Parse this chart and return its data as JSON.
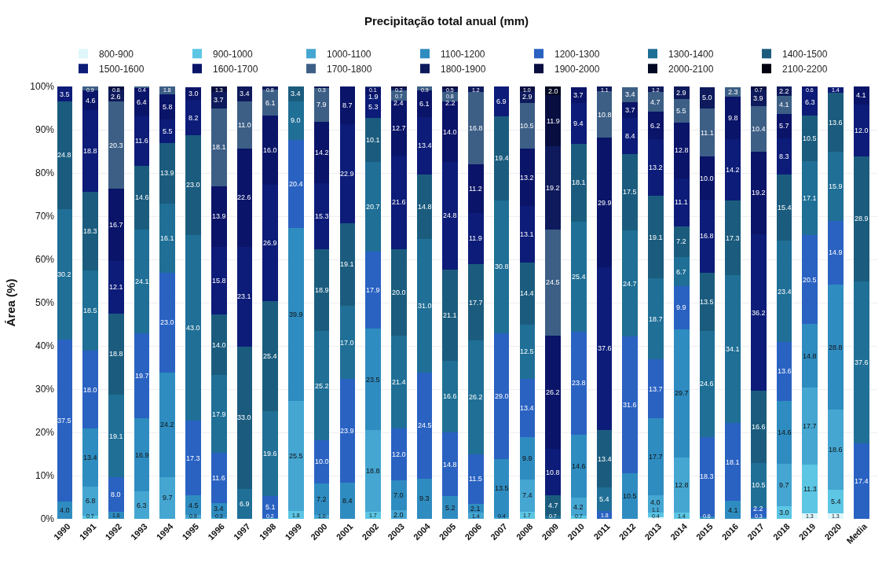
{
  "chart_data": {
    "type": "bar",
    "stacked": true,
    "title": "Precipitação total anual (mm)",
    "ylabel": "Área (%)",
    "categories": [
      "1990",
      "1991",
      "1992",
      "1993",
      "1994",
      "1995",
      "1996",
      "1997",
      "1998",
      "1999",
      "2000",
      "2001",
      "2002",
      "2003",
      "2004",
      "2005",
      "2006",
      "2007",
      "2008",
      "2009",
      "2010",
      "2011",
      "2012",
      "2013",
      "2014",
      "2015",
      "2016",
      "2017",
      "2018",
      "2019",
      "2020",
      "Media"
    ],
    "ylim": [
      0,
      100
    ],
    "yticks": [
      {
        "value": 0,
        "label": "0%"
      },
      {
        "value": 10,
        "label": "10%"
      },
      {
        "value": 20,
        "label": "20%"
      },
      {
        "value": 30,
        "label": "30%"
      },
      {
        "value": 40,
        "label": "40%"
      },
      {
        "value": 50,
        "label": "50%"
      },
      {
        "value": 60,
        "label": "60%"
      },
      {
        "value": 70,
        "label": "70%"
      },
      {
        "value": 80,
        "label": "80%"
      },
      {
        "value": 90,
        "label": "90%"
      },
      {
        "value": 100,
        "label": "100%"
      }
    ],
    "grid": "y",
    "legend": "top",
    "data_labels": true,
    "series": [
      {
        "name": "800-900",
        "color": "#dff6fb",
        "values": [
          null,
          null,
          null,
          null,
          null,
          null,
          null,
          null,
          null,
          null,
          null,
          null,
          null,
          null,
          null,
          null,
          null,
          null,
          null,
          null,
          null,
          null,
          null,
          0.4,
          null,
          null,
          null,
          null,
          null,
          1.3,
          1.3,
          null
        ],
        "value_labels": [
          null,
          null,
          null,
          null,
          null,
          null,
          null,
          null,
          null,
          null,
          null,
          null,
          null,
          null,
          null,
          null,
          null,
          null,
          null,
          null,
          null,
          null,
          null,
          "0.4",
          null,
          null,
          null,
          null,
          null,
          "1.3",
          "1.3",
          null
        ]
      },
      {
        "name": "900-1000",
        "color": "#5cc6e4",
        "values": [
          null,
          0.7,
          null,
          null,
          null,
          null,
          null,
          null,
          null,
          1.8,
          null,
          null,
          1.7,
          null,
          null,
          null,
          null,
          null,
          1.7,
          null,
          0.7,
          null,
          null,
          1.1,
          1.4,
          null,
          null,
          null,
          3.0,
          11.3,
          5.4,
          null
        ],
        "value_labels": [
          null,
          "0.7",
          null,
          null,
          null,
          null,
          null,
          null,
          null,
          "1.8",
          null,
          null,
          "1.7",
          null,
          null,
          null,
          null,
          null,
          "1.7",
          null,
          "0.7",
          null,
          null,
          "1.1",
          "1.4",
          null,
          null,
          null,
          "3.0",
          "11.3",
          "5.4",
          null
        ]
      },
      {
        "name": "1000-1100",
        "color": "#45a6d2",
        "values": [
          null,
          6.8,
          null,
          6.3,
          9.7,
          0.9,
          0.3,
          null,
          null,
          25.5,
          1.0,
          null,
          18.8,
          2.0,
          null,
          null,
          1.4,
          0.4,
          7.4,
          null,
          4.2,
          null,
          null,
          4.0,
          12.8,
          null,
          null,
          null,
          9.7,
          17.7,
          18.6,
          null
        ],
        "value_labels": [
          null,
          "6.8",
          null,
          "6.3",
          "9.7",
          "0.9",
          "0.3",
          null,
          null,
          "25.5",
          "1.0",
          null,
          "18.8",
          "2.0",
          null,
          null,
          "1.4",
          "0.4",
          "7.4",
          null,
          "4.2",
          null,
          null,
          "4.0",
          "12.8",
          null,
          null,
          null,
          "9.7",
          "17.7",
          "18.6",
          null
        ]
      },
      {
        "name": "1100-1200",
        "color": "#2f8cc0",
        "values": [
          4.0,
          13.4,
          1.6,
          16.9,
          24.2,
          4.5,
          3.4,
          null,
          0.2,
          39.9,
          7.2,
          8.4,
          23.5,
          7.0,
          9.3,
          5.2,
          2.1,
          13.5,
          9.9,
          null,
          14.6,
          null,
          10.5,
          17.7,
          29.7,
          0.6,
          4.1,
          0.3,
          14.6,
          14.8,
          28.8,
          null
        ],
        "value_labels": [
          "4.0",
          "13.4",
          "1.6",
          "16.9",
          "24.2",
          "4.5",
          "3.4",
          null,
          "0.2",
          "39.9",
          "7.2",
          "8.4",
          "23.5",
          "7.0",
          "9.3",
          "5.2",
          "2.1",
          "13.5",
          "9.9",
          null,
          "14.6",
          null,
          "10.5",
          "17.7",
          "29.7",
          "0.6",
          "4.1",
          "0.3",
          "14.6",
          "14.8",
          "28.8",
          null
        ]
      },
      {
        "name": "1200-1300",
        "color": "#2a62c2",
        "values": [
          37.5,
          18.0,
          8.0,
          19.7,
          23.0,
          17.3,
          11.6,
          null,
          5.1,
          20.4,
          10.0,
          23.9,
          17.9,
          12.0,
          24.5,
          14.8,
          11.5,
          29.0,
          13.4,
          null,
          23.8,
          1.8,
          31.6,
          13.7,
          9.9,
          18.3,
          18.1,
          2.2,
          13.6,
          20.5,
          14.9,
          17.4
        ],
        "value_labels": [
          "37.5",
          "18.0",
          "8.0",
          "19.7",
          "23.0",
          "17.3",
          "11.6",
          null,
          "5.1",
          "20.4",
          "10.0",
          "23.9",
          "17.9",
          "12.0",
          "24.5",
          "14.8",
          "11.5",
          "29.0",
          "13.4",
          null,
          "23.8",
          "1.8",
          "31.6",
          "13.7",
          "9.9",
          "18.3",
          "18.1",
          "2.2",
          "13.6",
          "20.5",
          "14.9",
          "17.4"
        ]
      },
      {
        "name": "1300-1400",
        "color": "#1f6f96",
        "values": [
          30.2,
          18.5,
          19.1,
          24.1,
          16.1,
          43.0,
          17.9,
          6.9,
          19.6,
          9.0,
          25.2,
          17.0,
          20.7,
          21.4,
          31.0,
          16.6,
          26.2,
          30.8,
          12.5,
          0.7,
          25.4,
          5.4,
          24.7,
          18.7,
          6.7,
          24.6,
          34.1,
          10.5,
          23.4,
          17.1,
          15.9,
          37.6
        ],
        "value_labels": [
          "30.2",
          "18.5",
          "19.1",
          "24.1",
          "16.1",
          "43.0",
          "17.9",
          "6.9",
          "19.6",
          "9.0",
          "25.2",
          "17.0",
          "20.7",
          "21.4",
          "31.0",
          "16.6",
          "26.2",
          "30.8",
          "12.5",
          "0.7",
          "25.4",
          "5.4",
          "24.7",
          "18.7",
          "6.7",
          "24.6",
          "34.1",
          "10.5",
          "23.4",
          "17.1",
          "15.9",
          "37.6"
        ]
      },
      {
        "name": "1400-1500",
        "color": "#1b5c7e",
        "values": [
          24.8,
          18.3,
          18.8,
          14.6,
          13.9,
          23.0,
          14.0,
          33.0,
          25.4,
          3.4,
          18.9,
          19.1,
          10.1,
          20.0,
          14.8,
          21.1,
          17.7,
          19.4,
          14.4,
          4.7,
          18.1,
          13.4,
          17.5,
          19.1,
          7.2,
          13.5,
          17.3,
          16.6,
          15.4,
          10.5,
          13.6,
          28.9
        ],
        "value_labels": [
          "24.8",
          "18.3",
          "18.8",
          "14.6",
          "13.9",
          "23.0",
          "14.0",
          "33.0",
          "25.4",
          "3.4",
          "18.9",
          "19.1",
          "10.1",
          "20.0",
          "14.8",
          "21.1",
          "17.7",
          "19.4",
          "14.4",
          "4.7",
          "18.1",
          "13.4",
          "17.5",
          "19.1",
          "7.2",
          "13.5",
          "17.3",
          "16.6",
          "15.4",
          "10.5",
          "13.6",
          "28.9"
        ]
      },
      {
        "name": "1500-1600",
        "color": "#0c1c78",
        "values": [
          3.5,
          18.8,
          12.1,
          11.6,
          5.5,
          8.2,
          15.8,
          23.1,
          26.9,
          null,
          15.3,
          22.9,
          5.3,
          21.6,
          13.4,
          24.8,
          11.9,
          6.9,
          13.1,
          10.8,
          9.4,
          37.6,
          8.4,
          13.2,
          11.1,
          16.8,
          14.2,
          36.2,
          8.3,
          6.3,
          1.4,
          12.0
        ],
        "value_labels": [
          "3.5",
          "18.8",
          "12.1",
          "11.6",
          "5.5",
          "8.2",
          "15.8",
          "23.1",
          "26.9",
          null,
          "15.3",
          "22.9",
          "5.3",
          "21.6",
          "13.4",
          "24.8",
          "11.9",
          "6.9",
          "13.1",
          "10.8",
          "9.4",
          "37.6",
          "8.4",
          "13.2",
          "11.1",
          "16.8",
          "14.2",
          "36.2",
          "8.3",
          "6.3",
          "1.4",
          "12.0"
        ]
      },
      {
        "name": "1600-1700",
        "color": "#0a1468",
        "values": [
          null,
          4.6,
          16.7,
          6.4,
          5.8,
          3.0,
          13.9,
          22.6,
          16.0,
          null,
          14.2,
          8.7,
          1.9,
          12.7,
          6.1,
          14.0,
          11.2,
          null,
          13.2,
          26.2,
          3.7,
          29.9,
          3.7,
          6.2,
          12.8,
          10.0,
          9.8,
          19.2,
          5.7,
          0.6,
          null,
          4.1
        ],
        "value_labels": [
          null,
          "4.6",
          "16.7",
          "6.4",
          "5.8",
          "3.0",
          "13.9",
          "22.6",
          "16.0",
          null,
          "14.2",
          "8.7",
          "1.9",
          "12.7",
          "6.1",
          "14.0",
          "11.2",
          null,
          "13.2",
          "26.2",
          "3.7",
          "29.9",
          "3.7",
          "6.2",
          "12.8",
          "10.0",
          "9.8",
          "19.2",
          "5.7",
          "0.6",
          null,
          "4.1"
        ]
      },
      {
        "name": "1700-1800",
        "color": "#3d5f86",
        "values": [
          null,
          0.9,
          20.3,
          0.4,
          1.8,
          null,
          18.1,
          11.0,
          6.1,
          null,
          7.9,
          null,
          0.1,
          2.4,
          0.9,
          2.2,
          16.8,
          null,
          10.5,
          24.5,
          null,
          10.8,
          3.4,
          4.7,
          5.5,
          11.1,
          2.3,
          10.4,
          4.1,
          null,
          null,
          null
        ],
        "value_labels": [
          null,
          "0.9",
          "20.3",
          "0.4",
          "1.8",
          null,
          "18.1",
          "11.0",
          "6.1",
          null,
          "7.9",
          null,
          "0.1",
          "2.4",
          "0.9",
          "2.2",
          "16.8",
          null,
          "10.5",
          "24.5",
          null,
          "10.8",
          "3.4",
          "4.7",
          "5.5",
          "11.1",
          "2.3",
          "10.4",
          "4.1",
          null,
          null,
          null
        ]
      },
      {
        "name": "1800-1900",
        "color": "#0e1a5c",
        "values": [
          null,
          null,
          2.6,
          null,
          null,
          null,
          3.7,
          3.4,
          0.8,
          null,
          0.3,
          null,
          null,
          0.7,
          null,
          0.8,
          1.2,
          null,
          2.9,
          19.2,
          null,
          1.1,
          null,
          1.2,
          2.9,
          5.0,
          null,
          3.9,
          2.2,
          null,
          null,
          null
        ],
        "value_labels": [
          null,
          null,
          "2.6",
          null,
          null,
          null,
          "3.7",
          "3.4",
          "0.8",
          null,
          "0.3",
          null,
          null,
          "0.7",
          null,
          "0.8",
          "1.2",
          null,
          "2.9",
          "19.2",
          null,
          "1.1",
          null,
          "1.2",
          "2.9",
          "5.0",
          null,
          "3.9",
          "2.2",
          null,
          null,
          null
        ]
      },
      {
        "name": "1900-2000",
        "color": "#080e40",
        "values": [
          null,
          null,
          0.8,
          null,
          null,
          null,
          1.3,
          null,
          null,
          null,
          null,
          null,
          null,
          0.2,
          null,
          0.5,
          null,
          null,
          1.0,
          11.9,
          null,
          null,
          null,
          null,
          null,
          null,
          null,
          0.7,
          null,
          null,
          null,
          null
        ],
        "value_labels": [
          null,
          null,
          "0.8",
          null,
          null,
          null,
          "1.3",
          null,
          null,
          null,
          null,
          null,
          null,
          "0.2",
          null,
          "0.5",
          null,
          null,
          "1.0",
          "11.9",
          null,
          null,
          null,
          null,
          null,
          null,
          null,
          "0.7",
          null,
          null,
          null,
          null
        ]
      },
      {
        "name": "2000-2100",
        "color": "#030822",
        "values": [
          null,
          null,
          null,
          null,
          null,
          null,
          null,
          null,
          null,
          null,
          null,
          null,
          null,
          null,
          null,
          null,
          null,
          null,
          null,
          2.0,
          null,
          null,
          null,
          null,
          null,
          null,
          null,
          null,
          null,
          null,
          null,
          null
        ],
        "value_labels": [
          null,
          null,
          null,
          null,
          null,
          null,
          null,
          null,
          null,
          null,
          null,
          null,
          null,
          null,
          null,
          null,
          null,
          null,
          null,
          "2.0",
          null,
          null,
          null,
          null,
          null,
          null,
          null,
          null,
          null,
          null,
          null,
          null
        ]
      },
      {
        "name": "2100-2200",
        "color": "#000010",
        "values": [
          null,
          null,
          null,
          null,
          null,
          null,
          null,
          null,
          null,
          null,
          null,
          null,
          null,
          null,
          null,
          null,
          null,
          null,
          null,
          null,
          null,
          null,
          null,
          null,
          null,
          null,
          null,
          null,
          null,
          null,
          null,
          null
        ]
      }
    ]
  }
}
